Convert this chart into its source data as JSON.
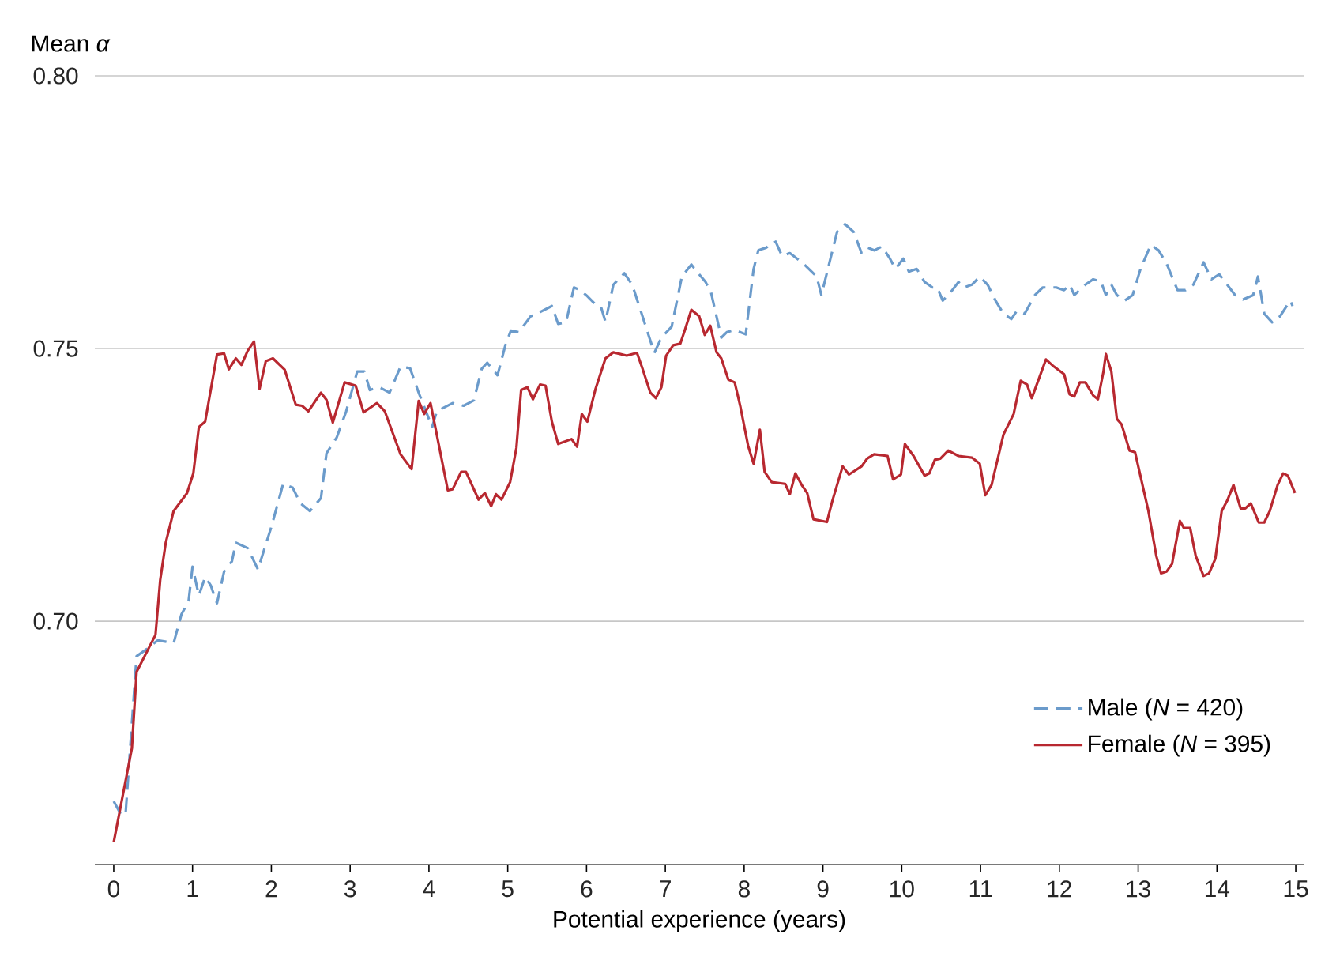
{
  "chart_data": {
    "type": "line",
    "xlabel": "Potential experience (years)",
    "ylabel": "Mean *α*",
    "xlim": [
      -0.24,
      15.1
    ],
    "ylim": [
      0.6554,
      0.8
    ],
    "xticks": [
      0,
      1,
      2,
      3,
      4,
      5,
      6,
      7,
      8,
      9,
      10,
      11,
      12,
      13,
      14,
      15
    ],
    "yticks": [
      {
        "value": 0.7,
        "label": "0.70"
      },
      {
        "value": 0.75,
        "label": "0.75"
      },
      {
        "value": 0.8,
        "label": "0.80"
      }
    ],
    "grid": "y",
    "legend": "bottom right",
    "marker": "none",
    "series": [
      {
        "name": "Male (*N* = 420)",
        "color": "#6b9bcb",
        "line_style": "dashed",
        "x": [
          0,
          0.09,
          0.15,
          0.29,
          0.39,
          0.56,
          0.76,
          0.86,
          0.95,
          1.0,
          1.08,
          1.16,
          1.23,
          1.31,
          1.4,
          1.5,
          1.55,
          1.7,
          1.83,
          2.0,
          2.15,
          2.27,
          2.37,
          2.49,
          2.63,
          2.7,
          2.83,
          2.95,
          3.09,
          3.18,
          3.25,
          3.37,
          3.5,
          3.64,
          3.76,
          3.87,
          4.04,
          4.1,
          4.3,
          4.44,
          4.57,
          4.67,
          4.74,
          4.87,
          4.97,
          5.04,
          5.14,
          5.29,
          5.37,
          5.56,
          5.64,
          5.74,
          5.84,
          5.92,
          6.01,
          6.1,
          6.18,
          6.24,
          6.34,
          6.48,
          6.58,
          6.71,
          6.86,
          6.95,
          7.08,
          7.21,
          7.33,
          7.43,
          7.51,
          7.58,
          7.71,
          7.78,
          7.88,
          8.02,
          8.12,
          8.18,
          8.28,
          8.4,
          8.48,
          8.58,
          8.75,
          8.92,
          8.98,
          9.08,
          9.18,
          9.28,
          9.39,
          9.49,
          9.57,
          9.65,
          9.75,
          9.85,
          9.92,
          10.02,
          10.09,
          10.19,
          10.29,
          10.39,
          10.45,
          10.52,
          10.62,
          10.72,
          10.79,
          10.89,
          10.99,
          11.09,
          11.19,
          11.29,
          11.39,
          11.46,
          11.56,
          11.69,
          11.79,
          11.96,
          12.06,
          12.13,
          12.19,
          12.33,
          12.43,
          12.53,
          12.59,
          12.66,
          12.73,
          12.83,
          12.93,
          13.03,
          13.16,
          13.26,
          13.36,
          13.5,
          13.6,
          13.7,
          13.83,
          13.93,
          14.03,
          14.13,
          14.23,
          14.33,
          14.46,
          14.52,
          14.6,
          14.7,
          14.8,
          14.93,
          14.96
        ],
        "values": [
          0.667,
          0.6646,
          0.6646,
          0.6936,
          0.6946,
          0.6965,
          0.696,
          0.7013,
          0.7037,
          0.71,
          0.7047,
          0.7081,
          0.7066,
          0.7033,
          0.7091,
          0.711,
          0.7144,
          0.7134,
          0.7095,
          0.7173,
          0.7252,
          0.7245,
          0.7216,
          0.7202,
          0.7226,
          0.7308,
          0.7337,
          0.7385,
          0.7458,
          0.7458,
          0.7424,
          0.7429,
          0.7419,
          0.7467,
          0.7464,
          0.7419,
          0.7356,
          0.7385,
          0.74,
          0.7395,
          0.7405,
          0.7463,
          0.7474,
          0.7451,
          0.7506,
          0.7533,
          0.753,
          0.7559,
          0.7564,
          0.7578,
          0.7545,
          0.7548,
          0.7612,
          0.7607,
          0.7596,
          0.7583,
          0.7578,
          0.7549,
          0.7617,
          0.7638,
          0.7617,
          0.7559,
          0.7492,
          0.752,
          0.754,
          0.7632,
          0.7654,
          0.7636,
          0.7622,
          0.7603,
          0.752,
          0.753,
          0.7534,
          0.7526,
          0.7646,
          0.768,
          0.7685,
          0.7696,
          0.767,
          0.7675,
          0.7656,
          0.7632,
          0.7598,
          0.7656,
          0.7714,
          0.7728,
          0.7714,
          0.7675,
          0.7685,
          0.768,
          0.7687,
          0.7665,
          0.7646,
          0.7665,
          0.7641,
          0.7646,
          0.7622,
          0.7612,
          0.7612,
          0.7588,
          0.7603,
          0.7622,
          0.7612,
          0.7617,
          0.7632,
          0.7617,
          0.7588,
          0.7564,
          0.7554,
          0.7569,
          0.7564,
          0.7598,
          0.7612,
          0.7612,
          0.7607,
          0.7617,
          0.7598,
          0.7617,
          0.7627,
          0.7622,
          0.7598,
          0.7617,
          0.7598,
          0.7588,
          0.7598,
          0.7646,
          0.769,
          0.768,
          0.7656,
          0.7607,
          0.7607,
          0.7617,
          0.7658,
          0.7627,
          0.7636,
          0.7617,
          0.7598,
          0.759,
          0.7598,
          0.7632,
          0.7564,
          0.7548,
          0.7559,
          0.7588,
          0.7578
        ]
      },
      {
        "name": "Female (*N* = 395)",
        "color": "#b82830",
        "line_style": "solid",
        "x": [
          0,
          0.23,
          0.29,
          0.53,
          0.59,
          0.66,
          0.76,
          0.93,
          1.01,
          1.08,
          1.16,
          1.31,
          1.4,
          1.46,
          1.55,
          1.62,
          1.7,
          1.78,
          1.85,
          1.93,
          2.02,
          2.17,
          2.31,
          2.39,
          2.47,
          2.63,
          2.7,
          2.78,
          2.93,
          3.07,
          3.17,
          3.34,
          3.44,
          3.64,
          3.78,
          3.87,
          3.94,
          4.02,
          4.24,
          4.3,
          4.41,
          4.47,
          4.63,
          4.71,
          4.79,
          4.85,
          4.92,
          5.03,
          5.11,
          5.17,
          5.25,
          5.32,
          5.41,
          5.48,
          5.56,
          5.64,
          5.81,
          5.88,
          5.94,
          6.01,
          6.11,
          6.24,
          6.34,
          6.51,
          6.64,
          6.71,
          6.81,
          6.88,
          6.95,
          7.01,
          7.1,
          7.19,
          7.25,
          7.33,
          7.43,
          7.5,
          7.57,
          7.65,
          7.71,
          7.8,
          7.88,
          7.95,
          8.05,
          8.12,
          8.2,
          8.26,
          8.35,
          8.52,
          8.58,
          8.65,
          8.73,
          8.8,
          8.88,
          9.05,
          9.12,
          9.25,
          9.33,
          9.49,
          9.56,
          9.65,
          9.82,
          9.89,
          9.99,
          10.04,
          10.15,
          10.29,
          10.35,
          10.42,
          10.49,
          10.59,
          10.72,
          10.89,
          10.99,
          11.06,
          11.14,
          11.29,
          11.42,
          11.51,
          11.59,
          11.65,
          11.83,
          11.93,
          12.06,
          12.13,
          12.19,
          12.26,
          12.33,
          12.43,
          12.49,
          12.56,
          12.59,
          12.66,
          12.73,
          12.79,
          12.89,
          12.96,
          13.13,
          13.23,
          13.29,
          13.36,
          13.43,
          13.53,
          13.58,
          13.66,
          13.73,
          13.83,
          13.9,
          13.98,
          14.06,
          14.13,
          14.21,
          14.3,
          14.36,
          14.43,
          14.53,
          14.6,
          14.67,
          14.77,
          14.84,
          14.9,
          14.99
        ],
        "values": [
          0.6595,
          0.6767,
          0.6907,
          0.6975,
          0.7076,
          0.7144,
          0.7202,
          0.7235,
          0.7271,
          0.7356,
          0.7366,
          0.7489,
          0.7491,
          0.7462,
          0.7482,
          0.747,
          0.7496,
          0.7513,
          0.7426,
          0.7477,
          0.7482,
          0.7461,
          0.7397,
          0.7395,
          0.7385,
          0.7419,
          0.7406,
          0.7364,
          0.7438,
          0.7432,
          0.7383,
          0.74,
          0.7385,
          0.7306,
          0.7279,
          0.7404,
          0.738,
          0.74,
          0.724,
          0.7242,
          0.7274,
          0.7274,
          0.7223,
          0.7235,
          0.7211,
          0.7233,
          0.7223,
          0.7255,
          0.7318,
          0.7424,
          0.7429,
          0.7407,
          0.7434,
          0.7432,
          0.7366,
          0.7325,
          0.7334,
          0.732,
          0.738,
          0.7366,
          0.7424,
          0.7482,
          0.7493,
          0.7487,
          0.7492,
          0.7463,
          0.7419,
          0.7409,
          0.7429,
          0.7487,
          0.7506,
          0.7509,
          0.7535,
          0.7571,
          0.7559,
          0.7525,
          0.7542,
          0.7493,
          0.7482,
          0.7443,
          0.7438,
          0.7395,
          0.7322,
          0.7289,
          0.7351,
          0.7274,
          0.7255,
          0.7252,
          0.7233,
          0.7271,
          0.725,
          0.7235,
          0.7187,
          0.7182,
          0.7221,
          0.7284,
          0.7269,
          0.7284,
          0.7298,
          0.7306,
          0.7303,
          0.726,
          0.7269,
          0.7325,
          0.7303,
          0.7267,
          0.7271,
          0.7296,
          0.7298,
          0.7313,
          0.7303,
          0.73,
          0.7289,
          0.7231,
          0.725,
          0.7342,
          0.738,
          0.7441,
          0.7434,
          0.7409,
          0.748,
          0.7467,
          0.7453,
          0.7416,
          0.7412,
          0.7438,
          0.7438,
          0.7414,
          0.7407,
          0.7458,
          0.749,
          0.7458,
          0.7371,
          0.7361,
          0.7313,
          0.731,
          0.7202,
          0.712,
          0.7088,
          0.7091,
          0.7105,
          0.7184,
          0.7171,
          0.7171,
          0.712,
          0.7083,
          0.7088,
          0.7115,
          0.7202,
          0.7221,
          0.725,
          0.7207,
          0.7207,
          0.7216,
          0.7181,
          0.7181,
          0.7202,
          0.725,
          0.7271,
          0.7267,
          0.7235
        ]
      }
    ]
  }
}
